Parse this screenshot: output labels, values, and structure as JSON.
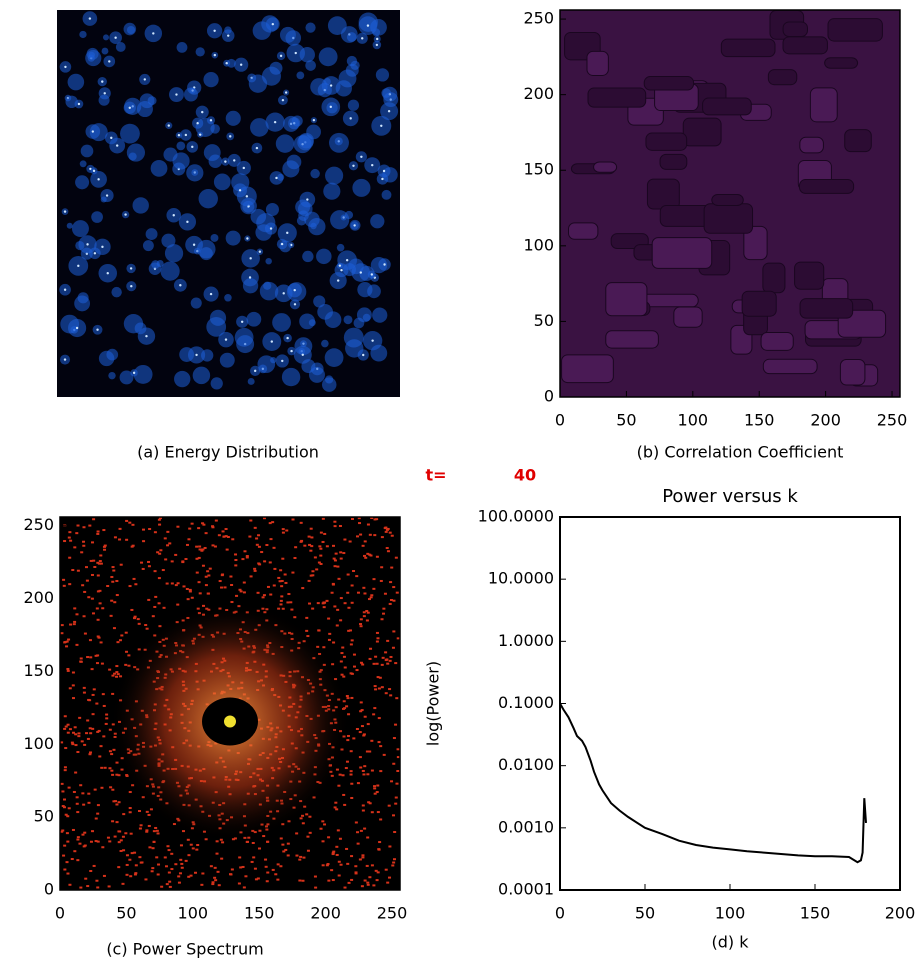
{
  "time_label": "t=",
  "time": 40,
  "chart_data": [
    {
      "type": "image",
      "caption": "(a) Energy Distribution"
    },
    {
      "type": "heatmap",
      "caption": "(b) Correlation Coefficient",
      "xlim": [
        0,
        256
      ],
      "ylim": [
        0,
        256
      ],
      "xticks": [
        0,
        50,
        100,
        150,
        200,
        250
      ],
      "yticks": [
        0,
        50,
        100,
        150,
        200,
        250
      ]
    },
    {
      "type": "heatmap",
      "caption": "(c) Power Spectrum",
      "xlim": [
        0,
        256
      ],
      "ylim": [
        0,
        256
      ],
      "xticks": [
        0,
        50,
        100,
        150,
        200,
        250
      ],
      "yticks": [
        0,
        50,
        100,
        150,
        200,
        250
      ]
    },
    {
      "type": "line",
      "title": "Power versus k",
      "xlabel": "(d) k",
      "ylabel": "log(Power)",
      "log_y": true,
      "xlim": [
        0,
        200
      ],
      "ylim": [
        0.0001,
        100
      ],
      "xticks": [
        0,
        50,
        100,
        150,
        200
      ],
      "yticks": [
        {
          "value": 100,
          "label": "100.0000"
        },
        {
          "value": 10,
          "label": "10.0000"
        },
        {
          "value": 1,
          "label": "1.0000"
        },
        {
          "value": 0.1,
          "label": "0.1000"
        },
        {
          "value": 0.01,
          "label": "0.0100"
        },
        {
          "value": 0.001,
          "label": "0.0010"
        },
        {
          "value": 0.0001,
          "label": "0.0001"
        }
      ],
      "color": "#000000",
      "x": [
        0,
        2,
        5,
        8,
        10,
        13,
        15,
        18,
        20,
        23,
        25,
        30,
        35,
        40,
        50,
        60,
        70,
        80,
        90,
        100,
        110,
        120,
        130,
        140,
        150,
        160,
        170,
        175,
        177,
        178,
        179,
        180
      ],
      "values": [
        0.1,
        0.08,
        0.06,
        0.04,
        0.03,
        0.025,
        0.02,
        0.012,
        0.008,
        0.005,
        0.004,
        0.0025,
        0.0019,
        0.0015,
        0.001,
        0.0008,
        0.00062,
        0.00053,
        0.00048,
        0.00045,
        0.00042,
        0.0004,
        0.00038,
        0.00036,
        0.00035,
        0.00035,
        0.00034,
        0.00028,
        0.0003,
        0.0004,
        0.003,
        0.0012
      ]
    }
  ]
}
